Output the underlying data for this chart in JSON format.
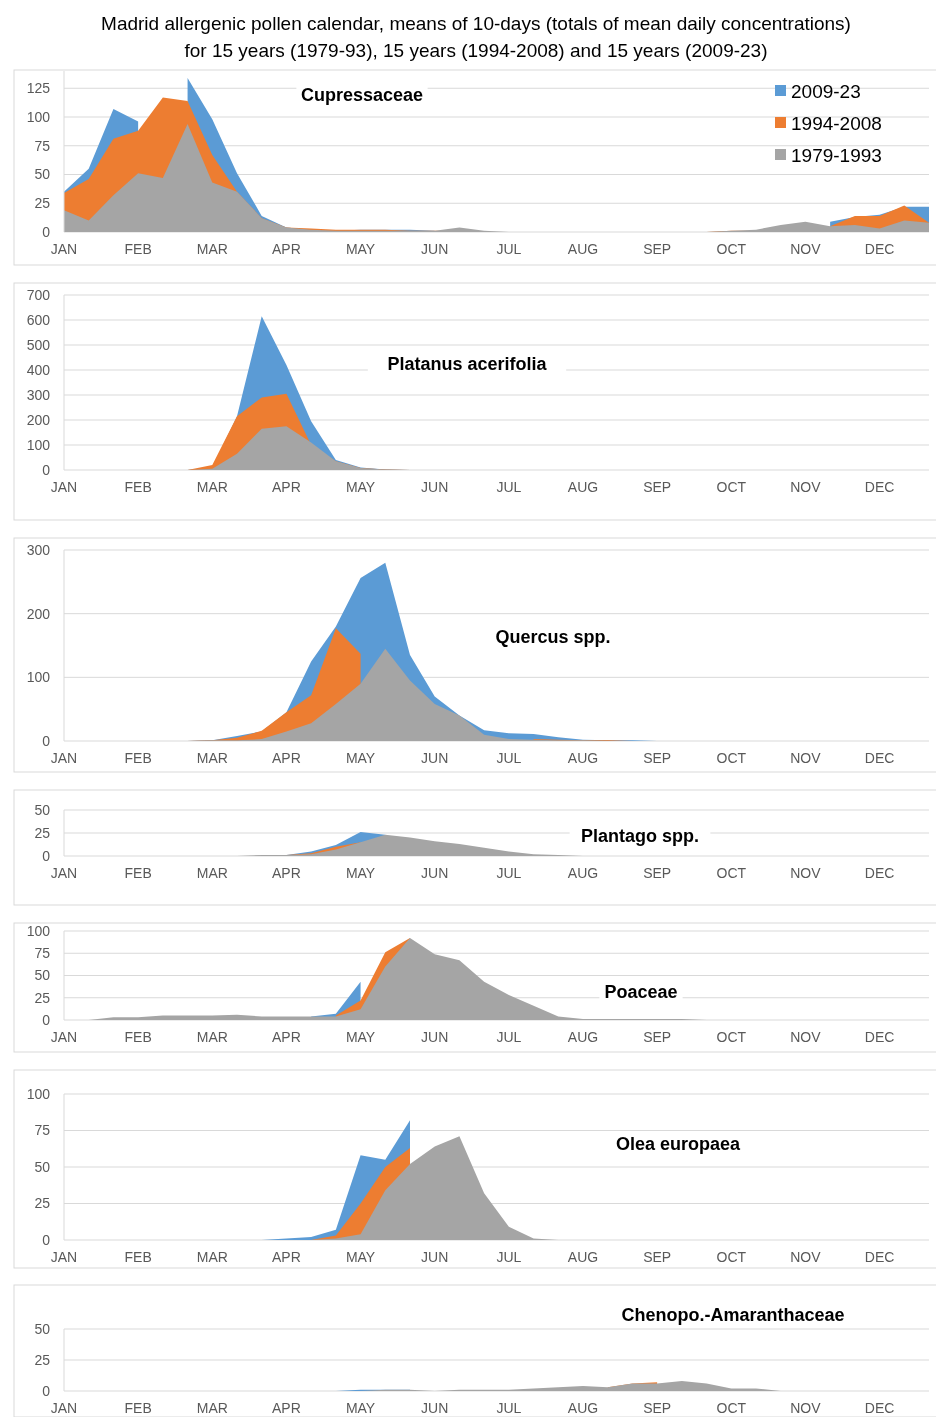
{
  "chart_data": [
    {
      "type": "area",
      "title": "Madrid allergenic pollen calendar, means of 10-days (totals of mean daily concentrations)\nfor 15 years (1979-93), 15 years (1994-2008) and 15 years (2009-23)",
      "subtitle": "Cupressaceae",
      "categories": [
        "JAN",
        null,
        null,
        "FEB",
        null,
        null,
        "MAR",
        null,
        null,
        "APR",
        null,
        null,
        "MAY",
        null,
        null,
        "JUN",
        null,
        null,
        "JUL",
        null,
        null,
        "AUG",
        null,
        null,
        "SEP",
        null,
        null,
        "OCT",
        null,
        null,
        "NOV",
        null,
        null,
        "DEC",
        null,
        null
      ],
      "ylim": [
        0,
        140
      ],
      "yticks": [
        0,
        25,
        50,
        75,
        100,
        125
      ],
      "grid": "y",
      "legend": "top right",
      "series": [
        {
          "name": "2009-23",
          "color": "#5b9bd5",
          "values": [
            35,
            55,
            107,
            96,
            null,
            134,
            98,
            51,
            14,
            4,
            2,
            1,
            2,
            2,
            2,
            1,
            null,
            null,
            null,
            null,
            null,
            null,
            null,
            null,
            null,
            null,
            null,
            null,
            null,
            null,
            null,
            9,
            13,
            15,
            22,
            22
          ]
        },
        {
          "name": "1994-2008",
          "color": "#ed7d31",
          "values": [
            34,
            46,
            81,
            88,
            117,
            114,
            67,
            35,
            12,
            4,
            3,
            2,
            2,
            2,
            1,
            1,
            1,
            0,
            0,
            0,
            0,
            0,
            0,
            0,
            0,
            0,
            0,
            1,
            1,
            5,
            null,
            5,
            14,
            14,
            23,
            8
          ]
        },
        {
          "name": "1979-1993",
          "color": "#a5a5a5",
          "values": [
            19,
            10,
            32,
            51,
            47,
            94,
            43,
            35,
            12,
            4,
            2,
            1,
            1,
            1,
            1,
            1,
            4,
            1,
            0,
            0,
            0,
            0,
            0,
            0,
            0,
            0,
            0,
            1,
            2,
            6,
            9,
            5,
            6,
            3,
            10,
            8
          ]
        }
      ]
    },
    {
      "type": "area",
      "subtitle": "Platanus acerifolia",
      "categories": [
        "JAN",
        null,
        null,
        "FEB",
        null,
        null,
        "MAR",
        null,
        null,
        "APR",
        null,
        null,
        "MAY",
        null,
        null,
        "JUN",
        null,
        null,
        "JUL",
        null,
        null,
        "AUG",
        null,
        null,
        "SEP",
        null,
        null,
        "OCT",
        null,
        null,
        "NOV",
        null,
        null,
        "DEC",
        null,
        null
      ],
      "ylim": [
        0,
        700
      ],
      "yticks": [
        0,
        100,
        200,
        300,
        400,
        500,
        600,
        700
      ],
      "grid": "y",
      "series": [
        {
          "color": "#5b9bd5",
          "values": [
            0,
            0,
            0,
            0,
            0,
            0,
            10,
            215,
            615,
            420,
            195,
            40,
            10,
            2,
            0,
            0,
            0,
            0,
            0,
            0,
            0,
            0,
            0,
            0,
            0,
            0,
            0,
            0,
            0,
            0,
            0,
            0,
            0,
            0,
            0,
            0
          ]
        },
        {
          "color": "#ed7d31",
          "values": [
            0,
            0,
            0,
            0,
            0,
            0,
            20,
            215,
            290,
            305,
            100,
            35,
            8,
            2,
            0,
            0,
            0,
            0,
            0,
            0,
            0,
            0,
            0,
            0,
            0,
            0,
            0,
            0,
            0,
            0,
            0,
            0,
            0,
            0,
            0,
            0
          ]
        },
        {
          "color": "#a5a5a5",
          "values": [
            0,
            0,
            0,
            0,
            0,
            0,
            5,
            65,
            165,
            175,
            110,
            35,
            8,
            2,
            0,
            0,
            0,
            0,
            0,
            0,
            0,
            0,
            0,
            0,
            0,
            0,
            0,
            0,
            0,
            0,
            0,
            0,
            0,
            0,
            0,
            0
          ]
        }
      ]
    },
    {
      "type": "area",
      "subtitle": "Quercus spp.",
      "categories": [
        "JAN",
        null,
        null,
        "FEB",
        null,
        null,
        "MAR",
        null,
        null,
        "APR",
        null,
        null,
        "MAY",
        null,
        null,
        "JUN",
        null,
        null,
        "JUL",
        null,
        null,
        "AUG",
        null,
        null,
        "SEP",
        null,
        null,
        "OCT",
        null,
        null,
        "NOV",
        null,
        null,
        "DEC",
        null,
        null
      ],
      "ylim": [
        0,
        300
      ],
      "yticks": [
        0,
        100,
        200,
        300
      ],
      "grid": "y",
      "series": [
        {
          "color": "#5b9bd5",
          "values": [
            0,
            0,
            0,
            0,
            0,
            0,
            1,
            8,
            15,
            45,
            125,
            180,
            256,
            280,
            135,
            70,
            40,
            17,
            12,
            11,
            6,
            2,
            1,
            1,
            0,
            0,
            0,
            0,
            0,
            0,
            0,
            0,
            0,
            0,
            0,
            0
          ]
        },
        {
          "color": "#ed7d31",
          "values": [
            0,
            0,
            0,
            0,
            0,
            0,
            1,
            5,
            16,
            45,
            72,
            177,
            137,
            null,
            null,
            null,
            null,
            null,
            null,
            3,
            2,
            1,
            1,
            0,
            0,
            0,
            0,
            0,
            0,
            0,
            0,
            0,
            0,
            0,
            0,
            0
          ]
        },
        {
          "color": "#a5a5a5",
          "values": [
            0,
            0,
            0,
            0,
            0,
            0,
            1,
            1,
            3,
            15,
            28,
            58,
            90,
            145,
            95,
            58,
            40,
            10,
            3,
            2,
            1,
            1,
            0,
            0,
            0,
            0,
            0,
            0,
            0,
            0,
            0,
            0,
            0,
            0,
            0,
            0
          ]
        }
      ]
    },
    {
      "type": "area",
      "subtitle": "Plantago spp.",
      "categories": [
        "JAN",
        null,
        null,
        "FEB",
        null,
        null,
        "MAR",
        null,
        null,
        "APR",
        null,
        null,
        "MAY",
        null,
        null,
        "JUN",
        null,
        null,
        "JUL",
        null,
        null,
        "AUG",
        null,
        null,
        "SEP",
        null,
        null,
        "OCT",
        null,
        null,
        "NOV",
        null,
        null,
        "DEC",
        null,
        null
      ],
      "ylim": [
        0,
        50
      ],
      "yticks": [
        0,
        25,
        50
      ],
      "grid": "y",
      "series": [
        {
          "color": "#5b9bd5",
          "values": [
            null,
            null,
            null,
            null,
            null,
            null,
            null,
            null,
            null,
            1,
            5,
            12,
            26,
            23,
            null,
            null,
            null,
            null,
            null,
            null,
            null,
            null,
            null,
            null,
            null,
            null,
            null,
            null,
            null,
            null,
            null,
            null,
            null,
            null,
            null,
            null
          ]
        },
        {
          "color": "#ed7d31",
          "values": [
            null,
            null,
            null,
            null,
            null,
            null,
            null,
            null,
            null,
            1,
            3,
            10,
            15,
            null,
            null,
            null,
            null,
            null,
            null,
            null,
            null,
            null,
            null,
            null,
            null,
            null,
            null,
            null,
            null,
            null,
            null,
            null,
            null,
            null,
            null,
            null
          ]
        },
        {
          "color": "#a5a5a5",
          "values": [
            0,
            0,
            0,
            0,
            0,
            0,
            0,
            0,
            1,
            1,
            2,
            7,
            15,
            23,
            20,
            16,
            13,
            9,
            5,
            2,
            1,
            0,
            0,
            0,
            0,
            0,
            0,
            0,
            0,
            0,
            0,
            0,
            0,
            0,
            0,
            0
          ]
        }
      ]
    },
    {
      "type": "area",
      "subtitle": "Poaceae",
      "categories": [
        "JAN",
        null,
        null,
        "FEB",
        null,
        null,
        "MAR",
        null,
        null,
        "APR",
        null,
        null,
        "MAY",
        null,
        null,
        "JUN",
        null,
        null,
        "JUL",
        null,
        null,
        "AUG",
        null,
        null,
        "SEP",
        null,
        null,
        "OCT",
        null,
        null,
        "NOV",
        null,
        null,
        "DEC",
        null,
        null
      ],
      "ylim": [
        0,
        100
      ],
      "yticks": [
        0,
        25,
        50,
        75,
        100
      ],
      "grid": "y",
      "series": [
        {
          "color": "#5b9bd5",
          "values": [
            null,
            null,
            null,
            null,
            null,
            null,
            null,
            null,
            null,
            null,
            4,
            7,
            43,
            null,
            null,
            null,
            null,
            null,
            null,
            null,
            null,
            null,
            null,
            null,
            null,
            null,
            null,
            null,
            null,
            null,
            null,
            null,
            null,
            null,
            null,
            null
          ]
        },
        {
          "color": "#ed7d31",
          "values": [
            null,
            null,
            null,
            null,
            null,
            null,
            null,
            null,
            null,
            null,
            null,
            5,
            22,
            76,
            92,
            null,
            null,
            null,
            null,
            null,
            null,
            null,
            null,
            null,
            null,
            null,
            null,
            null,
            null,
            null,
            null,
            null,
            null,
            null,
            null,
            null
          ]
        },
        {
          "color": "#a5a5a5",
          "values": [
            0,
            0,
            3,
            3,
            5,
            5,
            5,
            6,
            4,
            4,
            4,
            4,
            12,
            60,
            92,
            74,
            67,
            43,
            28,
            16,
            4,
            1,
            1,
            1,
            1,
            1,
            0,
            0,
            0,
            0,
            0,
            0,
            0,
            0,
            0,
            0
          ]
        }
      ]
    },
    {
      "type": "area",
      "subtitle": "Olea europaea",
      "categories": [
        "JAN",
        null,
        null,
        "FEB",
        null,
        null,
        "MAR",
        null,
        null,
        "APR",
        null,
        null,
        "MAY",
        null,
        null,
        "JUN",
        null,
        null,
        "JUL",
        null,
        null,
        "AUG",
        null,
        null,
        "SEP",
        null,
        null,
        "OCT",
        null,
        null,
        "NOV",
        null,
        null,
        "DEC",
        null,
        null
      ],
      "ylim": [
        0,
        100
      ],
      "yticks": [
        0,
        25,
        50,
        75,
        100
      ],
      "grid": "y",
      "series": [
        {
          "color": "#5b9bd5",
          "values": [
            0,
            0,
            0,
            0,
            0,
            0,
            0,
            0,
            0,
            1,
            2,
            7,
            58,
            55,
            82,
            null,
            null,
            null,
            null,
            null,
            null,
            null,
            null,
            null,
            null,
            null,
            null,
            null,
            null,
            null,
            null,
            null,
            null,
            null,
            null,
            null
          ]
        },
        {
          "color": "#ed7d31",
          "values": [
            null,
            null,
            null,
            null,
            null,
            null,
            null,
            null,
            null,
            null,
            0,
            3,
            25,
            50,
            63,
            null,
            null,
            null,
            null,
            null,
            null,
            null,
            null,
            null,
            null,
            null,
            null,
            null,
            null,
            null,
            null,
            null,
            null,
            null,
            null,
            null
          ]
        },
        {
          "color": "#a5a5a5",
          "values": [
            0,
            0,
            0,
            0,
            0,
            0,
            0,
            0,
            0,
            0,
            0,
            1,
            4,
            34,
            52,
            64,
            71,
            32,
            9,
            1,
            0,
            0,
            0,
            0,
            0,
            0,
            0,
            0,
            0,
            0,
            0,
            0,
            0,
            0,
            0,
            0
          ]
        }
      ]
    },
    {
      "type": "area",
      "subtitle": "Chenopo.-Amaranthaceae",
      "categories": [
        "JAN",
        null,
        null,
        "FEB",
        null,
        null,
        "MAR",
        null,
        null,
        "APR",
        null,
        null,
        "MAY",
        null,
        null,
        "JUN",
        null,
        null,
        "JUL",
        null,
        null,
        "AUG",
        null,
        null,
        "SEP",
        null,
        null,
        "OCT",
        null,
        null,
        "NOV",
        null,
        null,
        "DEC",
        null,
        null
      ],
      "ylim": [
        0,
        50
      ],
      "yticks": [
        0,
        25,
        50
      ],
      "grid": "y",
      "series": [
        {
          "color": "#5b9bd5",
          "values": [
            null,
            null,
            null,
            null,
            null,
            null,
            null,
            null,
            null,
            null,
            null,
            0,
            1,
            1,
            1,
            null,
            null,
            null,
            null,
            null,
            null,
            null,
            null,
            null,
            null,
            null,
            null,
            null,
            null,
            null,
            null,
            null,
            null,
            null,
            null,
            null
          ]
        },
        {
          "color": "#ed7d31",
          "values": [
            null,
            null,
            null,
            null,
            null,
            null,
            null,
            null,
            null,
            null,
            null,
            null,
            null,
            null,
            null,
            null,
            null,
            null,
            null,
            null,
            null,
            null,
            3,
            6,
            7,
            null,
            null,
            null,
            null,
            null,
            null,
            null,
            null,
            null,
            null,
            null
          ]
        },
        {
          "color": "#a5a5a5",
          "values": [
            0,
            0,
            0,
            0,
            0,
            0,
            0,
            0,
            0,
            0,
            0,
            0,
            0,
            1,
            1,
            0,
            1,
            1,
            1,
            2,
            3,
            4,
            3,
            6,
            6,
            8,
            6,
            2,
            2,
            0,
            0,
            0,
            0,
            0,
            0,
            0
          ]
        }
      ]
    }
  ]
}
